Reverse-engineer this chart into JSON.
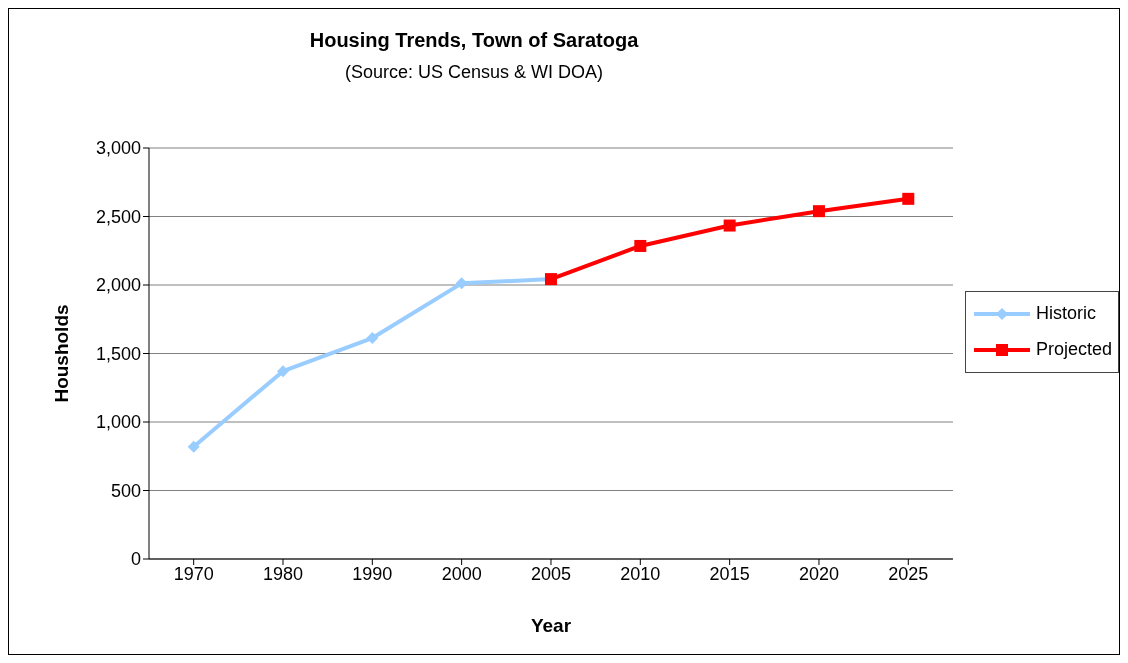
{
  "chart_data": {
    "type": "line",
    "title": "Housing Trends, Town of Saratoga",
    "subtitle": "(Source: US Census & WI DOA)",
    "xlabel": "Year",
    "ylabel": "Housholds",
    "categories": [
      "1970",
      "1980",
      "1990",
      "2000",
      "2005",
      "2010",
      "2015",
      "2020",
      "2025"
    ],
    "series": [
      {
        "name": "Historic",
        "color": "#99ccff",
        "marker": "diamond",
        "values": [
          820,
          1371,
          1613,
          2012,
          2043,
          null,
          null,
          null,
          null
        ]
      },
      {
        "name": "Projected",
        "color": "#ff0000",
        "marker": "square",
        "values": [
          null,
          null,
          null,
          null,
          2043,
          2285,
          2434,
          2539,
          2629
        ]
      }
    ],
    "ylim": [
      0,
      3000
    ],
    "yticks": [
      0,
      500,
      {
        "value": 1000,
        "label": "1,000"
      },
      {
        "value": 1500,
        "label": "1,500"
      },
      {
        "value": 2000,
        "label": "2,000"
      },
      {
        "value": 2500,
        "label": "2,500"
      },
      {
        "value": 3000,
        "label": "3,000"
      }
    ],
    "grid": "y",
    "legend": "right",
    "line_style": "solid"
  }
}
